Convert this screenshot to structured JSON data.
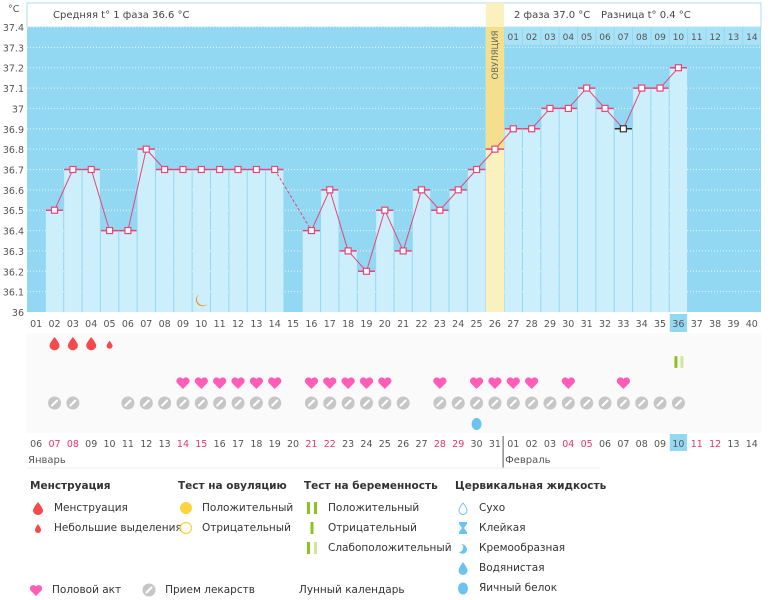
{
  "header": {
    "unit": "°C",
    "phase1_label": "Средняя t° 1 фаза 36.6 °C",
    "phase2_label": "2 фаза 37.0 °C",
    "difference_label": "Разница t° 0.4 °C",
    "ovulation_label": "ОВУЛЯЦИЯ"
  },
  "chart_data": {
    "type": "bar",
    "title": "Basal body temperature chart",
    "ylabel": "°C",
    "xlabel": "",
    "ylim": [
      36.0,
      37.4
    ],
    "yticks": [
      "36",
      "36.1",
      "36.2",
      "36.3",
      "36.4",
      "36.5",
      "36.6",
      "36.7",
      "36.8",
      "36.9",
      "37",
      "37.1",
      "37.2",
      "37.3",
      "37.4"
    ],
    "ytick_values": [
      36.0,
      36.1,
      36.2,
      36.3,
      36.4,
      36.5,
      36.6,
      36.7,
      36.8,
      36.9,
      37.0,
      37.1,
      37.2,
      37.3,
      37.4
    ],
    "cycle_days": [
      "01",
      "02",
      "03",
      "04",
      "05",
      "06",
      "07",
      "08",
      "09",
      "10",
      "11",
      "12",
      "13",
      "14",
      "15",
      "16",
      "17",
      "18",
      "19",
      "20",
      "21",
      "22",
      "23",
      "24",
      "25",
      "26",
      "27",
      "28",
      "29",
      "30",
      "31",
      "32",
      "33",
      "34",
      "35",
      "36",
      "37",
      "38",
      "39",
      "40"
    ],
    "temperatures": [
      null,
      36.5,
      36.7,
      36.7,
      36.4,
      36.4,
      36.8,
      36.7,
      36.7,
      36.7,
      36.7,
      36.7,
      36.7,
      36.7,
      null,
      36.4,
      36.6,
      36.3,
      36.2,
      36.5,
      36.3,
      36.6,
      36.5,
      36.6,
      36.7,
      36.8,
      36.9,
      36.9,
      37.0,
      37.0,
      37.1,
      37.0,
      36.9,
      37.1,
      37.1,
      37.2,
      null,
      null,
      null,
      null
    ],
    "excluded_points": [
      33
    ],
    "ovulation_day": 26,
    "current_day": 36,
    "last_day_with_data": 36,
    "top_strip_dates": [
      "01",
      "02",
      "03",
      "04",
      "05",
      "06",
      "07",
      "08",
      "09",
      "10",
      "11",
      "12",
      "13",
      "14"
    ],
    "calendar_dates": [
      "06",
      "07",
      "08",
      "09",
      "10",
      "11",
      "12",
      "13",
      "14",
      "15",
      "16",
      "17",
      "18",
      "19",
      "20",
      "21",
      "22",
      "23",
      "24",
      "25",
      "26",
      "27",
      "28",
      "29",
      "30",
      "31",
      "01",
      "02",
      "03",
      "04",
      "05",
      "06",
      "07",
      "08",
      "09",
      "10",
      "11",
      "12",
      "13",
      "14"
    ],
    "weekend_days": [
      2,
      3,
      9,
      10,
      16,
      17,
      23,
      24,
      30,
      31,
      37,
      38
    ],
    "months": [
      {
        "label": "Январь",
        "start_day": 1
      },
      {
        "label": "Февраль",
        "start_day": 27
      }
    ],
    "menstruation_days": [
      2,
      3,
      4
    ],
    "light_spotting_days": [
      5
    ],
    "pregnancy_test_weak_positive_days": [
      36
    ],
    "intercourse_days": [
      9,
      10,
      11,
      12,
      13,
      14,
      16,
      17,
      18,
      19,
      20,
      23,
      25,
      26,
      27,
      28,
      30,
      33
    ],
    "medication_days": [
      2,
      3,
      6,
      7,
      8,
      9,
      10,
      11,
      12,
      13,
      14,
      16,
      17,
      18,
      19,
      20,
      21,
      23,
      24,
      25,
      26,
      27,
      28,
      29,
      30,
      31,
      32,
      33,
      34,
      35,
      36
    ],
    "cervical_egg_white_days": [
      25
    ],
    "lunar_calendar_days": [
      10
    ]
  },
  "colors": {
    "chart_bg": "#93d8f2",
    "bar": "#cdeefb",
    "line": "#e8457a",
    "ovulation": "#fbf1bf",
    "weekend": "#e8336a",
    "menstruation": "#f44a4a",
    "heart": "#ff5db8",
    "pill": "#c6c6c6",
    "cervical": "#6cc3f0",
    "preg_dark": "#8cc21e",
    "preg_light": "#cfe79a",
    "moon": "#f5931b",
    "ovulation_positive": "#fcd440"
  },
  "legend": {
    "menstruation": {
      "title": "Менструация",
      "items": [
        "Менструация",
        "Небольшие выделения"
      ]
    },
    "ovulation_test": {
      "title": "Тест на овуляцию",
      "items": [
        "Положительный",
        "Отрицательный"
      ]
    },
    "pregnancy_test": {
      "title": "Тест на беременность",
      "items": [
        "Положительный",
        "Отрицательный",
        "Слабоположительный"
      ]
    },
    "cervical_fluid": {
      "title": "Цервикальная жидкость",
      "items": [
        "Сухо",
        "Клейкая",
        "Кремообразная",
        "Водянистая",
        "Яичный белок"
      ]
    },
    "other": {
      "items": [
        "Половой акт",
        "Прием лекарств",
        "Лунный календарь"
      ]
    }
  }
}
